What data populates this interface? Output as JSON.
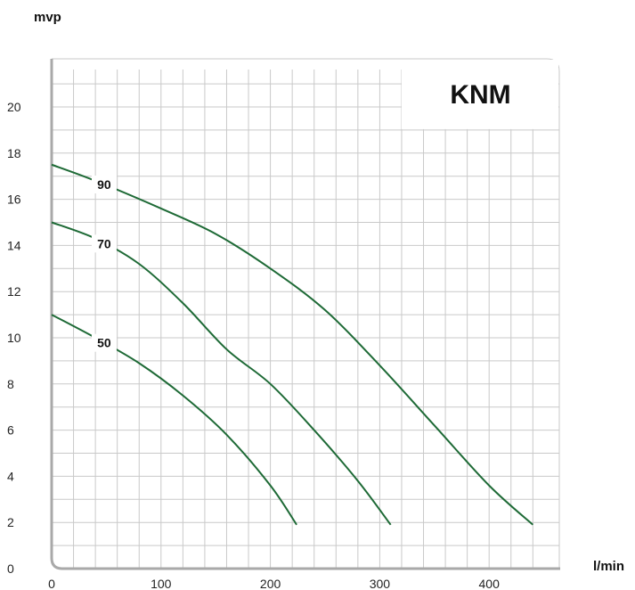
{
  "chart_data": {
    "type": "line",
    "title": "KNM",
    "xlabel": "l/min",
    "ylabel": "mvp",
    "xlim": [
      0,
      460
    ],
    "ylim": [
      0,
      22
    ],
    "x_ticks": [
      "0",
      "100",
      "200",
      "300",
      "400"
    ],
    "y_ticks": [
      "0",
      "2",
      "4",
      "6",
      "8",
      "10",
      "12",
      "14",
      "16",
      "18",
      "20"
    ],
    "grid": true,
    "color": "#1e6a36",
    "series": [
      {
        "name": "90",
        "x": [
          0,
          40,
          100,
          150,
          200,
          250,
          300,
          350,
          400,
          440
        ],
        "y": [
          17.5,
          16.8,
          15.6,
          14.5,
          13.0,
          11.2,
          8.8,
          6.2,
          3.6,
          1.9
        ]
      },
      {
        "name": "70",
        "x": [
          0,
          40,
          80,
          120,
          160,
          200,
          240,
          280,
          310
        ],
        "y": [
          15.0,
          14.3,
          13.2,
          11.5,
          9.5,
          8.0,
          6.0,
          3.8,
          1.9
        ]
      },
      {
        "name": "50",
        "x": [
          0,
          40,
          80,
          120,
          160,
          200,
          224
        ],
        "y": [
          11.0,
          10.0,
          8.9,
          7.5,
          5.8,
          3.6,
          1.9
        ]
      }
    ]
  }
}
